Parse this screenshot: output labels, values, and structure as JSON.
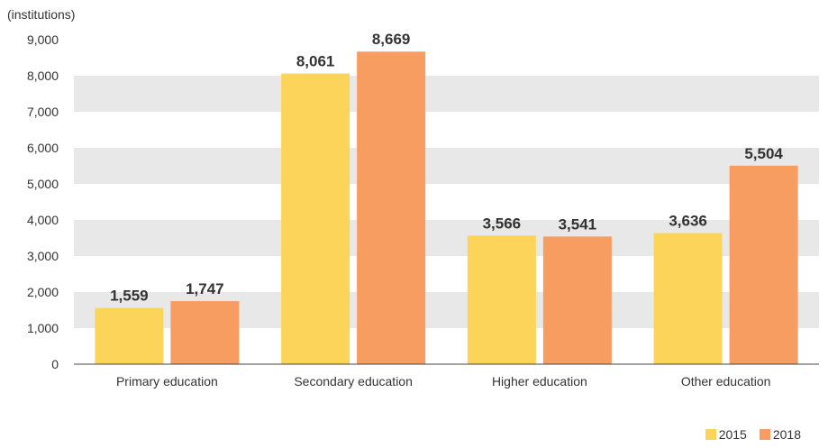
{
  "chart_data": {
    "type": "bar",
    "unit_label": "(institutions)",
    "categories": [
      "Primary education",
      "Secondary education",
      "Higher education",
      "Other education"
    ],
    "series": [
      {
        "name": "2015",
        "color": "#fcd45a",
        "values": [
          1559,
          8061,
          3566,
          3636
        ],
        "labels": [
          "1,559",
          "8,061",
          "3,566",
          "3,636"
        ]
      },
      {
        "name": "2018",
        "color": "#f89d62",
        "values": [
          1747,
          8669,
          3541,
          5504
        ],
        "labels": [
          "1,747",
          "8,669",
          "3,541",
          "5,504"
        ]
      }
    ],
    "ylim": [
      0,
      9000
    ],
    "yticks": [
      {
        "value": 0,
        "label": "0"
      },
      {
        "value": 1000,
        "label": "1,000"
      },
      {
        "value": 2000,
        "label": "2,000"
      },
      {
        "value": 3000,
        "label": "3,000"
      },
      {
        "value": 4000,
        "label": "4,000"
      },
      {
        "value": 5000,
        "label": "5,000"
      },
      {
        "value": 6000,
        "label": "6,000"
      },
      {
        "value": 7000,
        "label": "7,000"
      },
      {
        "value": 8000,
        "label": "8,000"
      },
      {
        "value": 9000,
        "label": "9,000"
      }
    ],
    "band_color": "#e8e8e8",
    "grid": "alternating bands",
    "legend_position": "bottom-right"
  }
}
